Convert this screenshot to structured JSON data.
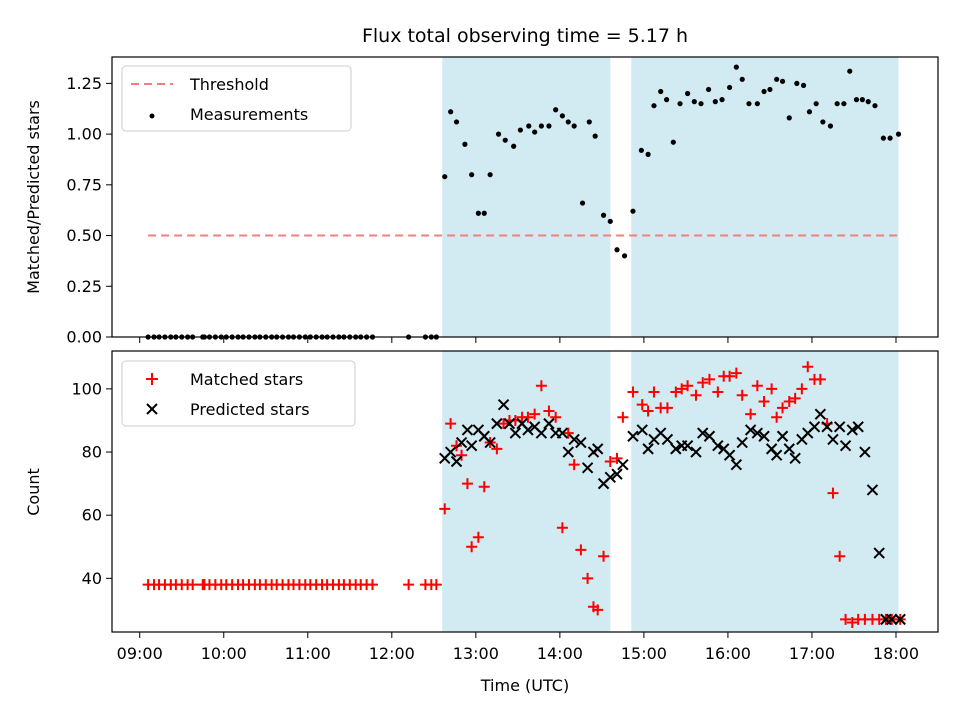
{
  "chart_data": {
    "type": "scatter",
    "title": "Flux total observing time = 5.17 h",
    "xlabel": "Time (UTC)",
    "x_unit": "hours (UTC)",
    "x_ticks": [
      {
        "value": 9,
        "label": "09:00"
      },
      {
        "value": 10,
        "label": "10:00"
      },
      {
        "value": 11,
        "label": "11:00"
      },
      {
        "value": 12,
        "label": "12:00"
      },
      {
        "value": 13,
        "label": "13:00"
      },
      {
        "value": 14,
        "label": "14:00"
      },
      {
        "value": 15,
        "label": "15:00"
      },
      {
        "value": 16,
        "label": "16:00"
      },
      {
        "value": 17,
        "label": "17:00"
      },
      {
        "value": 18,
        "label": "18:00"
      }
    ],
    "xlim": [
      8.67,
      18.5
    ],
    "observing_windows": [
      [
        12.6,
        14.6
      ],
      [
        14.85,
        18.03
      ]
    ],
    "window_color": "#add8e6",
    "top_panel": {
      "ylabel": "Matched/Predicted stars",
      "ylim": [
        0,
        1.38
      ],
      "y_ticks": [
        {
          "value": 0,
          "label": "0.00"
        },
        {
          "value": 0.25,
          "label": "0.25"
        },
        {
          "value": 0.5,
          "label": "0.50"
        },
        {
          "value": 0.75,
          "label": "0.75"
        },
        {
          "value": 1.0,
          "label": "1.00"
        },
        {
          "value": 1.25,
          "label": "1.25"
        }
      ],
      "threshold": {
        "name": "Threshold",
        "y": 0.5,
        "x_range": [
          9.1,
          18.05
        ],
        "color": "#f08080"
      },
      "legend": [
        {
          "label": "Threshold",
          "key": "threshold"
        },
        {
          "label": "Measurements",
          "key": "measurements"
        }
      ],
      "series": [
        {
          "name": "Measurements",
          "key": "measurements",
          "color": "#000000",
          "x": [
            9.1,
            9.17,
            9.23,
            9.3,
            9.37,
            9.43,
            9.5,
            9.57,
            9.63,
            9.75,
            9.77,
            9.83,
            9.9,
            9.97,
            10.03,
            10.1,
            10.17,
            10.23,
            10.3,
            10.37,
            10.43,
            10.5,
            10.57,
            10.63,
            10.7,
            10.77,
            10.83,
            10.9,
            10.97,
            11.03,
            11.1,
            11.17,
            11.23,
            11.3,
            11.37,
            11.43,
            11.5,
            11.57,
            11.63,
            11.7,
            11.77,
            12.2,
            12.4,
            12.47,
            12.53,
            12.63,
            12.7,
            12.77,
            12.87,
            12.95,
            13.03,
            13.1,
            13.17,
            13.27,
            13.35,
            13.45,
            13.53,
            13.63,
            13.7,
            13.78,
            13.87,
            13.95,
            14.03,
            14.1,
            14.17,
            14.27,
            14.35,
            14.42,
            14.52,
            14.6,
            14.68,
            14.77,
            14.87,
            14.97,
            15.05,
            15.12,
            15.2,
            15.27,
            15.35,
            15.43,
            15.52,
            15.6,
            15.68,
            15.77,
            15.85,
            15.93,
            16.02,
            16.1,
            16.17,
            16.25,
            16.35,
            16.43,
            16.5,
            16.58,
            16.65,
            16.73,
            16.82,
            16.9,
            16.97,
            17.05,
            17.13,
            17.22,
            17.3,
            17.38,
            17.45,
            17.53,
            17.6,
            17.67,
            17.75,
            17.85,
            17.93,
            18.03
          ],
          "values": [
            0,
            0,
            0,
            0,
            0,
            0,
            0,
            0,
            0,
            0,
            0,
            0,
            0,
            0,
            0,
            0,
            0,
            0,
            0,
            0,
            0,
            0,
            0,
            0,
            0,
            0,
            0,
            0,
            0,
            0,
            0,
            0,
            0,
            0,
            0,
            0,
            0,
            0,
            0,
            0,
            0,
            0,
            0,
            0,
            0,
            0.79,
            1.11,
            1.06,
            0.95,
            0.8,
            0.61,
            0.61,
            0.8,
            1.0,
            0.97,
            0.94,
            1.02,
            1.04,
            1.01,
            1.04,
            1.04,
            1.12,
            1.09,
            1.06,
            1.04,
            0.66,
            1.06,
            0.99,
            0.6,
            0.57,
            0.43,
            0.4,
            0.62,
            0.92,
            0.9,
            1.14,
            1.21,
            1.17,
            0.96,
            1.15,
            1.2,
            1.16,
            1.15,
            1.22,
            1.16,
            1.17,
            1.23,
            1.33,
            1.27,
            1.15,
            1.15,
            1.21,
            1.22,
            1.27,
            1.26,
            1.08,
            1.25,
            1.24,
            1.11,
            1.15,
            1.06,
            1.04,
            1.15,
            1.15,
            1.31,
            1.17,
            1.17,
            1.16,
            1.14,
            0.98,
            0.98,
            1.0
          ]
        }
      ]
    },
    "bottom_panel": {
      "ylabel": "Count",
      "ylim": [
        23,
        112
      ],
      "y_ticks": [
        {
          "value": 40,
          "label": "40"
        },
        {
          "value": 60,
          "label": "60"
        },
        {
          "value": 80,
          "label": "80"
        },
        {
          "value": 100,
          "label": "100"
        }
      ],
      "legend": [
        {
          "label": "Matched stars",
          "key": "matched"
        },
        {
          "label": "Predicted stars",
          "key": "predicted"
        }
      ],
      "series": [
        {
          "name": "Matched stars",
          "key": "matched",
          "marker": "plus",
          "color": "#ff0000",
          "x": [
            9.1,
            9.17,
            9.23,
            9.3,
            9.37,
            9.43,
            9.5,
            9.57,
            9.63,
            9.75,
            9.77,
            9.83,
            9.9,
            9.97,
            10.03,
            10.1,
            10.17,
            10.23,
            10.3,
            10.37,
            10.43,
            10.5,
            10.57,
            10.63,
            10.7,
            10.77,
            10.83,
            10.9,
            10.97,
            11.03,
            11.1,
            11.17,
            11.23,
            11.3,
            11.37,
            11.43,
            11.5,
            11.57,
            11.63,
            11.7,
            11.77,
            12.2,
            12.4,
            12.47,
            12.53,
            12.63,
            12.7,
            12.77,
            12.83,
            12.9,
            12.95,
            13.03,
            13.1,
            13.17,
            13.25,
            13.33,
            13.4,
            13.47,
            13.55,
            13.62,
            13.7,
            13.78,
            13.87,
            13.95,
            14.03,
            14.1,
            14.17,
            14.25,
            14.33,
            14.4,
            14.45,
            14.52,
            14.6,
            14.68,
            14.75,
            14.87,
            14.98,
            15.05,
            15.12,
            15.2,
            15.28,
            15.38,
            15.45,
            15.52,
            15.62,
            15.7,
            15.78,
            15.88,
            15.95,
            16.02,
            16.1,
            16.17,
            16.27,
            16.35,
            16.43,
            16.52,
            16.58,
            16.65,
            16.73,
            16.8,
            16.88,
            16.95,
            17.03,
            17.1,
            17.18,
            17.25,
            17.33,
            17.4,
            17.48,
            17.55,
            17.63,
            17.72,
            17.8,
            17.88,
            17.95,
            18.05
          ],
          "values": [
            38,
            38,
            38,
            38,
            38,
            38,
            38,
            38,
            38,
            38,
            38,
            38,
            38,
            38,
            38,
            38,
            38,
            38,
            38,
            38,
            38,
            38,
            38,
            38,
            38,
            38,
            38,
            38,
            38,
            38,
            38,
            38,
            38,
            38,
            38,
            38,
            38,
            38,
            38,
            38,
            38,
            38,
            38,
            38,
            38,
            62,
            89,
            82,
            79,
            70,
            50,
            53,
            69,
            83,
            81,
            89,
            90,
            90,
            91,
            91,
            92,
            101,
            93,
            91,
            56,
            86,
            76,
            49,
            40,
            31,
            30,
            47,
            77,
            78,
            91,
            99,
            95,
            93,
            99,
            94,
            94,
            99,
            100,
            101,
            98,
            102,
            103,
            99,
            104,
            104,
            105,
            98,
            92,
            101,
            96,
            100,
            91,
            94,
            96,
            97,
            100,
            107,
            103,
            103,
            89,
            67,
            47,
            27,
            26,
            27,
            27,
            27,
            27,
            27,
            27,
            27
          ],
          "values_note": ""
        },
        {
          "name": "Predicted stars",
          "key": "predicted",
          "marker": "x",
          "color": "#000000",
          "x": [
            12.63,
            12.7,
            12.77,
            12.83,
            12.9,
            12.95,
            13.03,
            13.1,
            13.17,
            13.25,
            13.33,
            13.4,
            13.47,
            13.55,
            13.62,
            13.7,
            13.78,
            13.87,
            13.95,
            14.03,
            14.1,
            14.17,
            14.25,
            14.33,
            14.4,
            14.45,
            14.52,
            14.6,
            14.68,
            14.75,
            14.87,
            14.98,
            15.05,
            15.12,
            15.2,
            15.28,
            15.38,
            15.45,
            15.52,
            15.62,
            15.7,
            15.78,
            15.88,
            15.95,
            16.02,
            16.1,
            16.17,
            16.27,
            16.35,
            16.43,
            16.52,
            16.58,
            16.65,
            16.73,
            16.8,
            16.88,
            16.95,
            17.03,
            17.1,
            17.18,
            17.25,
            17.33,
            17.4,
            17.48,
            17.55,
            17.63,
            17.72,
            17.8,
            17.88,
            17.95,
            18.05
          ],
          "values": [
            78,
            80,
            77,
            83,
            87,
            82,
            87,
            85,
            83,
            89,
            95,
            89,
            86,
            89,
            87,
            88,
            86,
            89,
            86,
            86,
            80,
            84,
            83,
            75,
            80,
            81,
            70,
            72,
            73,
            76,
            85,
            87,
            81,
            84,
            86,
            84,
            81,
            82,
            82,
            80,
            86,
            85,
            82,
            81,
            79,
            76,
            83,
            87,
            86,
            85,
            81,
            79,
            85,
            81,
            78,
            84,
            86,
            88,
            92,
            88,
            84,
            88,
            82,
            87,
            88,
            80,
            68,
            48,
            27,
            27,
            27
          ]
        }
      ]
    }
  }
}
